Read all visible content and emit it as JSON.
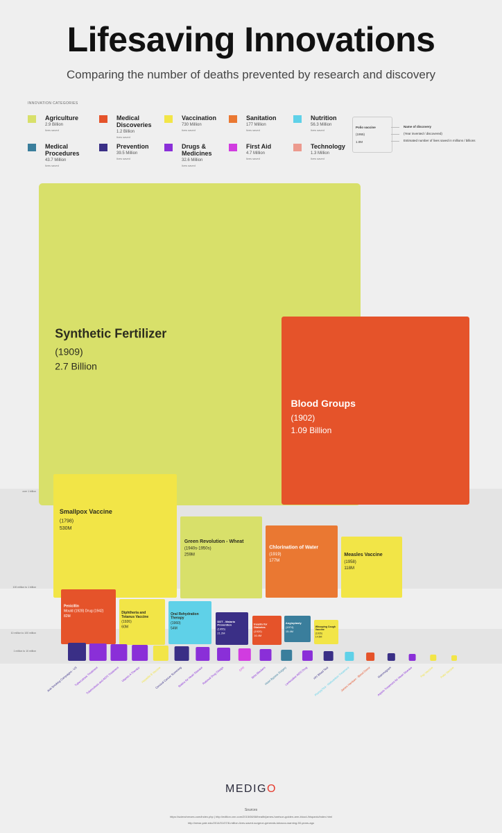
{
  "header": {
    "title": "Lifesaving Innovations",
    "subtitle": "Comparing the number of deaths prevented by research and discovery"
  },
  "legend": {
    "heading": "INNOVATION CATEGORIES",
    "items": [
      {
        "name": "Agriculture",
        "value": "2.9 Billion",
        "sub": "lives saved",
        "color": "#d8e06a"
      },
      {
        "name": "Medical Discoveries",
        "value": "1.2 Billion",
        "sub": "lives saved",
        "color": "#e5532a"
      },
      {
        "name": "Vaccination",
        "value": "730 Million",
        "sub": "lives saved",
        "color": "#f2e547"
      },
      {
        "name": "Sanitation",
        "value": "177 Million",
        "sub": "lives saved",
        "color": "#ea7832"
      },
      {
        "name": "Nutrition",
        "value": "56.3 Million",
        "sub": "lives saved",
        "color": "#5fd1e8"
      },
      {
        "name": "Medical Procedures",
        "value": "43.7 Million",
        "sub": "lives saved",
        "color": "#3a7e9c"
      },
      {
        "name": "Prevention",
        "value": "39.5 Million",
        "sub": "lives saved",
        "color": "#3a2f86"
      },
      {
        "name": "Drugs & Medicines",
        "value": "32.6 Million",
        "sub": "lives saved",
        "color": "#8a2fd8"
      },
      {
        "name": "First Aid",
        "value": "4.7 Million",
        "sub": "lives saved",
        "color": "#d13ce0"
      },
      {
        "name": "Technology",
        "value": "1.3 Million",
        "sub": "lives saved",
        "color": "#ec9a8e"
      }
    ]
  },
  "key": {
    "example_name": "Polio vaccine",
    "example_year": "(1955)",
    "example_value": "1.0M",
    "name_label": "Name of discovery",
    "year_label": "(Year invented / discovered)",
    "value_label": "Estimated number of lives saved in millions / billions"
  },
  "bands": {
    "over_1b": "over 1 billion",
    "m100_1b": "100 million to 1 billion",
    "m10_100": "10 million to 100 million",
    "m1_10": "1 million to 10 million"
  },
  "chart_data": {
    "type": "treemap-squares",
    "title": "Lifesaving Innovations",
    "subtitle": "Comparing the number of deaths prevented by research and discovery",
    "unit": "lives saved",
    "items": [
      {
        "name": "Synthetic Fertilizer",
        "year": "(1909)",
        "value_label": "2.7 Billion",
        "value": 2700,
        "category": "Agriculture"
      },
      {
        "name": "Blood Groups",
        "year": "(1902)",
        "value_label": "1.09 Billion",
        "value": 1090,
        "category": "Medical Discoveries"
      },
      {
        "name": "Smallpox Vaccine",
        "year": "(1798)",
        "value_label": "530M",
        "value": 530,
        "category": "Vaccination"
      },
      {
        "name": "Green Revolution - Wheat",
        "year": "(1940s-1950s)",
        "value_label": "259M",
        "value": 259,
        "category": "Agriculture"
      },
      {
        "name": "Chlorination of Water",
        "year": "(1919)",
        "value_label": "177M",
        "value": 177,
        "category": "Sanitation"
      },
      {
        "name": "Measles Vaccine",
        "year": "(1958)",
        "value_label": "118M",
        "value": 118,
        "category": "Vaccination"
      },
      {
        "name": "Penicillin",
        "year": "Mould (1928) Drug (1942)",
        "value_label": "82M",
        "value": 82,
        "category": "Medical Discoveries"
      },
      {
        "name": "Diphtheria and Tetanus Vaccine",
        "year": "(1926)",
        "value_label": "60M",
        "value": 60,
        "category": "Vaccination"
      },
      {
        "name": "Oral Rehydration Therapy",
        "year": "(1960)",
        "value_label": "54M",
        "value": 54,
        "category": "Nutrition"
      },
      {
        "name": "DDT - Malaria Prevention",
        "year": "(1955)",
        "value_label": "21.2M",
        "value": 21.2,
        "category": "Prevention"
      },
      {
        "name": "Insulin for Diabetes",
        "year": "(1920)",
        "value_label": "16.4M",
        "value": 16.4,
        "category": "Medical Discoveries"
      },
      {
        "name": "Angioplasty",
        "year": "(1974)",
        "value_label": "15.4M",
        "value": 15.4,
        "category": "Medical Procedures"
      },
      {
        "name": "Whooping Cough Vaccine",
        "year": "(1926)",
        "value_label": "14.5M",
        "value": 14.5,
        "category": "Vaccination"
      }
    ],
    "small_items": [
      {
        "name": "Anti-Smoking Campaigns - US",
        "category": "Prevention"
      },
      {
        "name": "Tuberculosis Treatment",
        "category": "Drugs & Medicines"
      },
      {
        "name": "Tuberculosis and AIDS Treatment",
        "category": "Drugs & Medicines"
      },
      {
        "name": "Vitamin A Therapy",
        "category": "Drugs & Medicines"
      },
      {
        "name": "Hepatitis B Vaccine",
        "category": "Vaccination"
      },
      {
        "name": "Cervical Cancer Screening",
        "category": "Prevention"
      },
      {
        "name": "Statins for Heart Disease",
        "category": "Drugs & Medicines"
      },
      {
        "name": "Rational Drug Design",
        "category": "Drugs & Medicines"
      },
      {
        "name": "CPR",
        "category": "First Aid"
      },
      {
        "name": "Beta Blockers",
        "category": "Drugs & Medicines"
      },
      {
        "name": "Heart Bypass Surgery",
        "category": "Medical Procedures"
      },
      {
        "name": "Lamivudine AIDS Drug",
        "category": "Drugs & Medicines"
      },
      {
        "name": "HIV Blood Test",
        "category": "Prevention"
      },
      {
        "name": "Plumpy'Nut - Malnutrition Treatment",
        "category": "Nutrition"
      },
      {
        "name": "James Harrison - Blood Donor",
        "category": "Medical Discoveries"
      },
      {
        "name": "Mammogram",
        "category": "Prevention"
      },
      {
        "name": "Aspirin Treatment for Heart Disease",
        "category": "Drugs & Medicines"
      },
      {
        "name": "Pap Vaccine",
        "category": "Vaccination"
      },
      {
        "name": "Polio Vaccine",
        "category": "Vaccination"
      }
    ]
  },
  "footer": {
    "brand_pre": "MEDIG",
    "brand_o": "O",
    "sources_label": "Sources",
    "source_line1": "https://sciencheroes.com/index.php | http://edition.cnn.com/2015/08/08/health/james-harrison-golden-arm-blood-/hispanic/index.html",
    "source_line2": "http://news.yale.edu/2014/01/07/8-million-lives-saved-surgeon-generals-tobacco-warning-50-years-ago"
  }
}
